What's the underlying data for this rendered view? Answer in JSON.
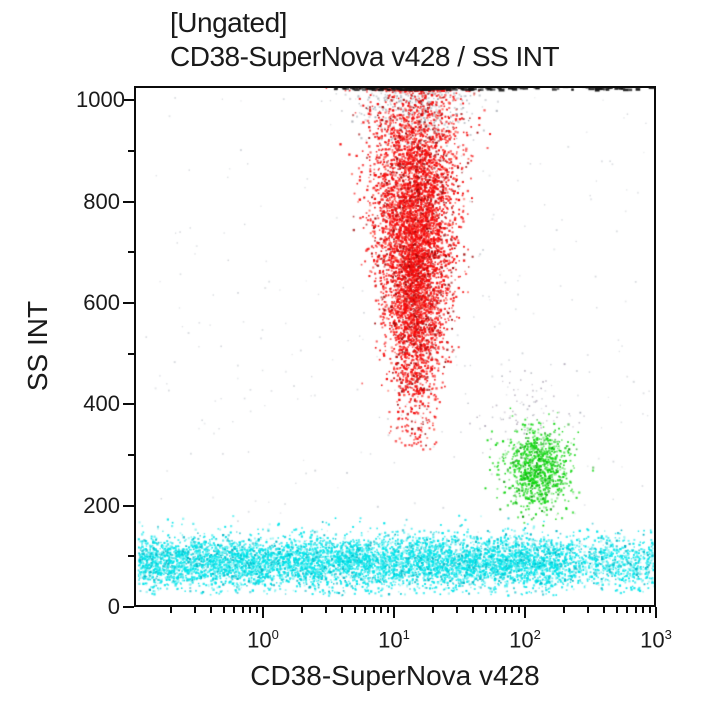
{
  "title": {
    "line1": "[Ungated]",
    "line2": "CD38-SuperNova v428 / SS INT"
  },
  "axes": {
    "x": {
      "label": "CD38-SuperNova v428",
      "scale": "log",
      "log_min": -0.985,
      "log_max": 3,
      "major_exponents": [
        0,
        1,
        2,
        3
      ],
      "minor_decades": [
        -1,
        0,
        1,
        2
      ]
    },
    "y": {
      "label": "SS INT",
      "min": 0,
      "max": 1000,
      "top_value": 1028,
      "major_ticks": [
        0,
        200,
        400,
        600,
        800,
        1000
      ],
      "minor_ticks": [
        100,
        300,
        500,
        700,
        900
      ]
    }
  },
  "chart_data": {
    "type": "scatter",
    "title": "[Ungated]",
    "subtitle": "CD38-SuperNova v428 / SS INT",
    "xlabel": "CD38-SuperNova v428",
    "ylabel": "SS INT",
    "x_scale": "log",
    "x_range": [
      0.1,
      1000
    ],
    "y_range": [
      0,
      1000
    ],
    "grid": false,
    "legend": "none",
    "populations": [
      {
        "name": "sparse-gray-debris",
        "color": "#c7cbd1",
        "variants": [
          {
            "color": "#c7cbd1",
            "p": 1.0
          }
        ],
        "count": 300,
        "x": {
          "type": "uniform-log",
          "min": -0.9,
          "max": 2.95
        },
        "y": {
          "type": "normal",
          "mean": 500,
          "sd": 330,
          "min": 30,
          "max": 1005
        },
        "size": [
          1.2,
          2.0
        ],
        "alpha": [
          0.35,
          0.8
        ]
      },
      {
        "name": "saturated-gray-top",
        "color": "#b5bac1",
        "variants": [
          {
            "color": "#b5bac1",
            "p": 0.7
          },
          {
            "color": "#989ea7",
            "p": 0.3
          }
        ],
        "count": 520,
        "x": {
          "type": "lognormal",
          "mean": 1.17,
          "sd": 0.23
        },
        "y": {
          "type": "normal",
          "mean": 1002,
          "sd": 42,
          "min": 880,
          "max": 1026
        },
        "size": [
          1.3,
          2.2
        ],
        "alpha": [
          0.45,
          0.95
        ]
      },
      {
        "name": "gray-above-green",
        "color": "#a39aac",
        "variants": [
          {
            "color": "#a39aac",
            "p": 0.8
          },
          {
            "color": "#8d93a0",
            "p": 0.2
          }
        ],
        "count": 90,
        "x": {
          "type": "lognormal",
          "mean": 2.05,
          "sd": 0.17
        },
        "y": {
          "type": "normal",
          "mean": 385,
          "sd": 45,
          "min": 290,
          "max": 480
        },
        "size": [
          1.2,
          1.9
        ],
        "alpha": [
          0.35,
          0.8
        ]
      },
      {
        "name": "lymphocytes-cyan-band",
        "color": "#00e4ea",
        "variants": [
          {
            "color": "#00e4ea",
            "p": 0.68
          },
          {
            "color": "#00b7c6",
            "p": 0.16
          },
          {
            "color": "#8ff2f2",
            "p": 0.16
          }
        ],
        "count": 7200,
        "x": {
          "type": "uniform-log",
          "min": -0.95,
          "max": 3.0,
          "taper_right_start": 2.25,
          "taper_right_p": 0.55
        },
        "y": {
          "type": "normal",
          "mean": 88,
          "sd": 26,
          "min": 22,
          "max": 185
        },
        "size": [
          1.4,
          2.4
        ],
        "alpha": [
          0.5,
          1.0
        ]
      },
      {
        "name": "monocytes-green-cluster",
        "color": "#0fd50f",
        "variants": [
          {
            "color": "#0fd50f",
            "p": 0.72
          },
          {
            "color": "#0a9c0a",
            "p": 0.14
          },
          {
            "color": "#7ee87e",
            "p": 0.14
          }
        ],
        "count": 1000,
        "x": {
          "type": "lognormal",
          "mean": 2.09,
          "sd": 0.12
        },
        "y": {
          "type": "normal",
          "mean": 272,
          "sd": 40,
          "min": 160,
          "max": 400
        },
        "size": [
          1.4,
          2.3
        ],
        "alpha": [
          0.5,
          1.0
        ]
      },
      {
        "name": "granulocytes-red-cloud",
        "color": "#f40c0c",
        "variants": [
          {
            "color": "#f40c0c",
            "p": 0.76
          },
          {
            "color": "#9c0505",
            "p": 0.13
          },
          {
            "color": "#ff5f50",
            "p": 0.11
          }
        ],
        "count": 6200,
        "x": {
          "type": "lognormal-taper",
          "mean": 1.16,
          "sd_min": 0.095,
          "sd_max": 0.195,
          "taper_y_ref": [
            420,
            1020
          ]
        },
        "y": {
          "type": "normal-tail",
          "mean": 730,
          "sd": 170,
          "min": 420,
          "max": 1024,
          "tail_p": 0.05,
          "tail_min": 310,
          "tail_max": 430
        },
        "size": [
          1.4,
          2.4
        ],
        "alpha": [
          0.55,
          1.0
        ]
      },
      {
        "name": "offscale-pileup-top-border",
        "color": "#121212",
        "variants": [
          {
            "color": "#121212",
            "p": 0.85
          },
          {
            "color": "#3a3a3a",
            "p": 0.15
          }
        ],
        "count": 240,
        "x": {
          "type": "mix-uniform-normal",
          "mean": 1.2,
          "sd": 0.3,
          "min": 0.55,
          "max": 2.97,
          "normal_p": 0.6
        },
        "y": {
          "type": "top-border"
        },
        "size": [
          2.5,
          6.0
        ],
        "alpha": [
          0.6,
          1.0
        ]
      }
    ]
  }
}
